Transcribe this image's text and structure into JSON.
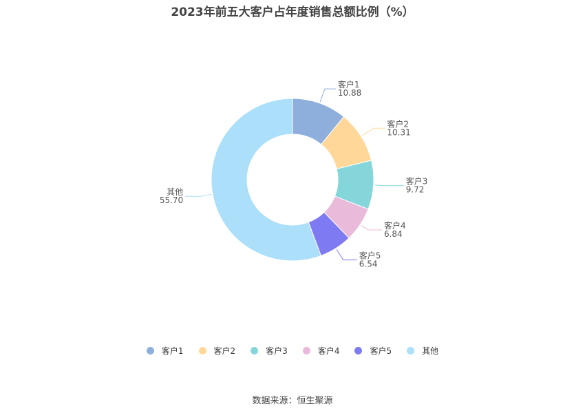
{
  "chart_data": {
    "type": "pie",
    "title": "2023年前五大客户占年度销售总额比例（%）",
    "donut": true,
    "categories": [
      "客户1",
      "客户2",
      "客户3",
      "客户4",
      "客户5",
      "其他"
    ],
    "values": [
      "10.88",
      "10.31",
      "9.72",
      "6.84",
      "6.54",
      "55.70"
    ],
    "colors": [
      "#8EAEDC",
      "#FFD899",
      "#85D6DA",
      "#E9BADA",
      "#7E7BF2",
      "#ABDFFA"
    ],
    "legend_position": "bottom"
  },
  "footer": {
    "source": "数据来源：恒生聚源"
  }
}
